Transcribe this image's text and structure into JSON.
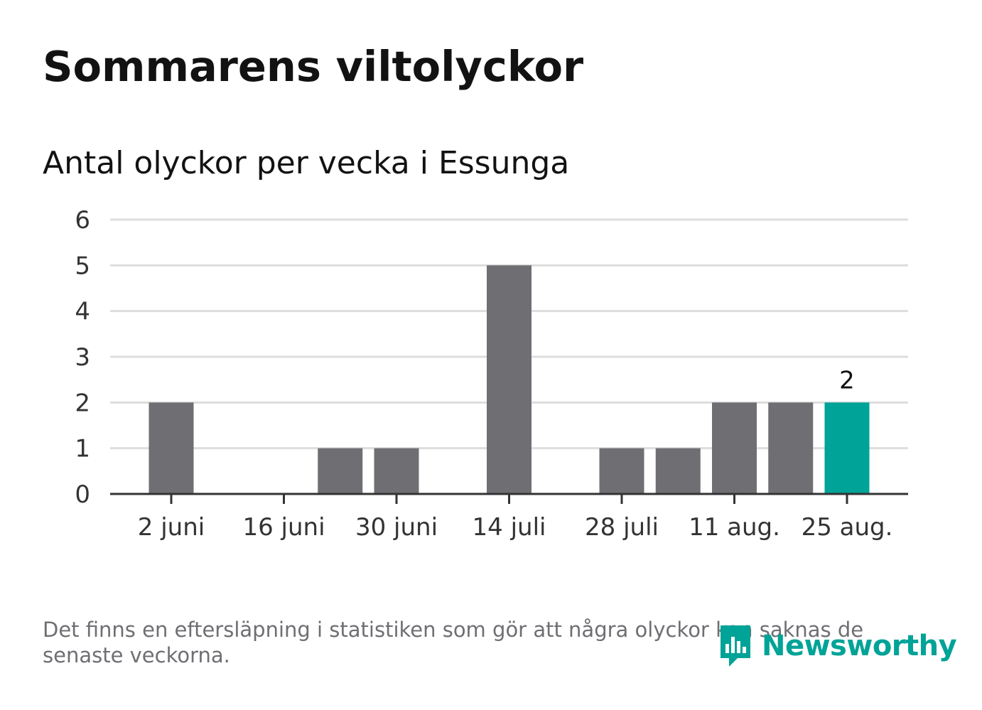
{
  "title": "Sommarens viltolyckor",
  "subtitle": "Antal olyckor per vecka i Essunga",
  "footnote": "Det finns en eftersläpning i statistiken som gör att några olyckor kan saknas de senaste veckorna.",
  "brand": {
    "name": "Newsworthy",
    "icon": "newsworthy-logo-icon",
    "color": "#00a397"
  },
  "colors": {
    "bar": "#6f6e73",
    "highlight": "#00a397",
    "grid": "#dddddd",
    "axis": "#333333",
    "text": "#121212"
  },
  "chart_data": {
    "type": "bar",
    "title": "Antal olyckor per vecka i Essunga",
    "xlabel": "",
    "ylabel": "",
    "ylim": [
      0,
      6
    ],
    "yticks": [
      0,
      1,
      2,
      3,
      4,
      5,
      6
    ],
    "grid": true,
    "weeks": [
      "2 juni",
      "9 juni",
      "16 juni",
      "23 juni",
      "30 juni",
      "7 juli",
      "14 juli",
      "21 juli",
      "28 juli",
      "4 aug.",
      "11 aug.",
      "18 aug.",
      "25 aug."
    ],
    "tick_labels": [
      "2 juni",
      "16 juni",
      "30 juni",
      "14 juli",
      "28 juli",
      "11 aug.",
      "25 aug."
    ],
    "values": [
      2,
      0,
      0,
      1,
      1,
      0,
      5,
      0,
      1,
      1,
      2,
      2,
      2
    ],
    "highlight_index": 12,
    "highlight_label": "2"
  }
}
